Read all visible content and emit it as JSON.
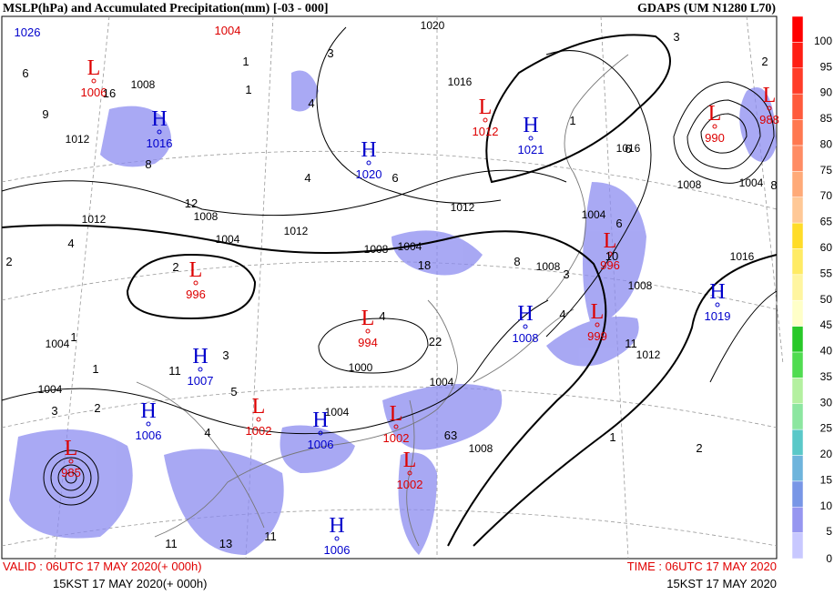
{
  "header": {
    "title": "MSLP(hPa) and  Accumulated Precipitation(mm) [-03 - 000]",
    "model": "GDAPS (UM N1280 L70)"
  },
  "footer": {
    "valid": "VALID : 06UTC 17 MAY 2020(+ 000h)",
    "valid_kst": "15KST 17 MAY 2020(+ 000h)",
    "time": "TIME : 06UTC 17 MAY 2020",
    "time_kst": "15KST 17 MAY 2020"
  },
  "colorbar": {
    "levels": [
      0,
      5,
      10,
      15,
      20,
      25,
      30,
      35,
      40,
      45,
      50,
      55,
      60,
      65,
      70,
      75,
      80,
      85,
      90,
      95,
      100
    ],
    "colors": [
      "#c8c8ff",
      "#9696f0",
      "#7896e6",
      "#6eb4dc",
      "#5ac8c8",
      "#8ce6a0",
      "#b4f0a0",
      "#50dc50",
      "#28c828",
      "#ffffc8",
      "#fff5a0",
      "#ffeb64",
      "#ffdc28",
      "#ffc896",
      "#ffaa78",
      "#ff8c64",
      "#ff7850",
      "#ff5a3c",
      "#ff3c28",
      "#ff1e14",
      "#ff0000"
    ]
  },
  "centers": [
    {
      "type": "H",
      "value": "1026"
    },
    {
      "type": "L",
      "value": "1004"
    },
    {
      "type": "L",
      "value": "1006"
    },
    {
      "type": "H",
      "value": "1016"
    },
    {
      "type": "H",
      "value": "1020"
    },
    {
      "type": "L",
      "value": "1012"
    },
    {
      "type": "H",
      "value": "1021"
    },
    {
      "type": "L",
      "value": "990"
    },
    {
      "type": "L",
      "value": "988"
    },
    {
      "type": "L",
      "value": "996"
    },
    {
      "type": "L",
      "value": "994"
    },
    {
      "type": "L",
      "value": "996"
    },
    {
      "type": "L",
      "value": "999"
    },
    {
      "type": "H",
      "value": "1008"
    },
    {
      "type": "H",
      "value": "1019"
    },
    {
      "type": "H",
      "value": "1007"
    },
    {
      "type": "H",
      "value": "1006"
    },
    {
      "type": "L",
      "value": "1002"
    },
    {
      "type": "H",
      "value": "1006"
    },
    {
      "type": "L",
      "value": "1002"
    },
    {
      "type": "L",
      "value": "1002"
    },
    {
      "type": "L",
      "value": "985"
    },
    {
      "type": "H",
      "value": "1006"
    }
  ],
  "isobar_labels": [
    "1008",
    "1012",
    "1012",
    "1008",
    "1004",
    "1020",
    "1016",
    "1012",
    "1012",
    "1008",
    "1004",
    "1008",
    "1004",
    "1008",
    "1004",
    "1016",
    "1008",
    "1012",
    "1000",
    "1004",
    "1004",
    "1004",
    "1004",
    "1008",
    "1016"
  ],
  "precip_labels": [
    "6",
    "9",
    "16",
    "1",
    "1",
    "3",
    "4",
    "8",
    "12",
    "4",
    "2",
    "6",
    "4",
    "2",
    "4",
    "1",
    "1",
    "3",
    "11",
    "5",
    "4",
    "3",
    "2",
    "22",
    "18",
    "1",
    "3",
    "4",
    "11",
    "10",
    "6",
    "63",
    "8",
    "1",
    "2",
    "11",
    "13",
    "11",
    "3",
    "2",
    "6",
    "8"
  ]
}
